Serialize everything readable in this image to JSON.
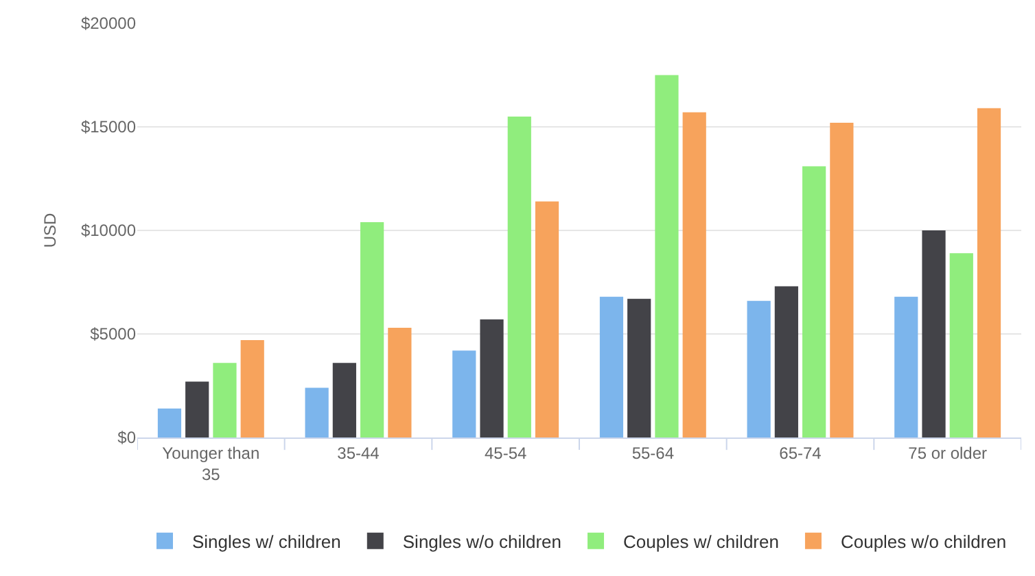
{
  "chart_data": {
    "type": "bar",
    "ylabel": "USD",
    "categories": [
      "Younger than 35",
      "35-44",
      "45-54",
      "55-64",
      "65-74",
      "75 or older"
    ],
    "series": [
      {
        "name": "Singles w/ children",
        "color": "#7cb5ec",
        "values": [
          1400,
          2400,
          4200,
          6800,
          6600,
          6800
        ]
      },
      {
        "name": "Singles w/o children",
        "color": "#434348",
        "values": [
          2700,
          3600,
          5700,
          6700,
          7300,
          10000
        ]
      },
      {
        "name": "Couples w/ children",
        "color": "#90ed7d",
        "values": [
          3600,
          10400,
          15500,
          17500,
          13100,
          8900
        ]
      },
      {
        "name": "Couples w/o children",
        "color": "#f7a35c",
        "values": [
          4700,
          5300,
          11400,
          15700,
          15200,
          15900
        ]
      }
    ],
    "ylim": [
      0,
      20000
    ],
    "yticks": [
      {
        "value": 0,
        "label": "$0"
      },
      {
        "value": 5000,
        "label": "$5000"
      },
      {
        "value": 10000,
        "label": "$10000"
      },
      {
        "value": 15000,
        "label": "$15000"
      },
      {
        "value": 20000,
        "label": "$20000"
      }
    ],
    "grid": "y",
    "legend": "bottom"
  }
}
